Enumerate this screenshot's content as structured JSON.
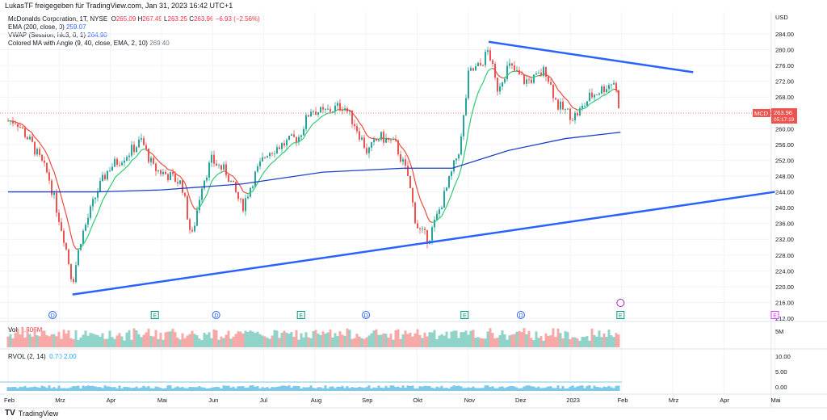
{
  "header": {
    "shared_by": "LukasTF freigegeben für TradingView.com, Jan 31, 2023 16:42 UTC+1"
  },
  "legend": {
    "symbol": "McDonalds Corporation, 1T, NYSE",
    "o_label": "O",
    "o": "265.09",
    "h_label": "H",
    "h": "267.49",
    "l_label": "L",
    "l": "263.25",
    "c_label": "C",
    "c": "263.96",
    "change": "−6.93 (−2.56%)",
    "ema": "EMA (200, close, 0)",
    "ema_val": "259.07",
    "vwap": "VWAP (Session, hlc3, 0, 1)",
    "vwap_val": "264.90",
    "cma": "Colored MA with Angle (9, 40, close, EMA, 2, 10)",
    "cma_val": "269.40"
  },
  "volume": {
    "label": "Vol",
    "value": "1.806M",
    "axis": "5M"
  },
  "rvol": {
    "label": "RVOL (2, 14)",
    "v1": "0.70",
    "v2": "2.00",
    "ticks": [
      "10.00",
      "5.00",
      "0.00"
    ]
  },
  "price_tag": {
    "symbol": "MCD",
    "price": "263.96",
    "countdown": "05:17:19"
  },
  "footer": {
    "brand": "TradingView"
  },
  "colors": {
    "up": "#26a69a",
    "down": "#ef5350",
    "trend": "#2962ff",
    "ema": "#1e40c8"
  },
  "chart_data": {
    "type": "candlestick",
    "currency": "USD",
    "ylim": [
      212,
      284
    ],
    "y_ticks": [
      284,
      280,
      276,
      272,
      268,
      260,
      256,
      252,
      248,
      244,
      240,
      236,
      232,
      228,
      224,
      220,
      216,
      212
    ],
    "x_ticks": [
      "Feb",
      "Mrz",
      "Apr",
      "Mai",
      "Jun",
      "Jul",
      "Aug",
      "Sep",
      "Okt",
      "Nov",
      "Dez",
      "2023",
      "Feb",
      "Mrz",
      "Apr",
      "Mai"
    ],
    "close_path": [
      [
        0,
        262
      ],
      [
        0.16,
        262
      ],
      [
        0.47,
        256
      ],
      [
        0.79,
        248
      ],
      [
        1.1,
        232
      ],
      [
        1.26,
        221
      ],
      [
        1.42,
        232
      ],
      [
        1.74,
        244
      ],
      [
        1.97,
        250
      ],
      [
        2.37,
        254
      ],
      [
        2.61,
        257
      ],
      [
        2.84,
        250
      ],
      [
        3.16,
        248
      ],
      [
        3.4,
        246
      ],
      [
        3.59,
        232
      ],
      [
        3.79,
        246
      ],
      [
        3.98,
        252
      ],
      [
        4.27,
        249
      ],
      [
        4.58,
        240
      ],
      [
        4.82,
        248
      ],
      [
        5.06,
        254
      ],
      [
        5.37,
        256
      ],
      [
        5.69,
        258
      ],
      [
        5.92,
        265
      ],
      [
        6.16,
        264
      ],
      [
        6.56,
        266
      ],
      [
        6.79,
        261
      ],
      [
        7.03,
        254
      ],
      [
        7.27,
        258
      ],
      [
        7.58,
        256
      ],
      [
        7.82,
        248
      ],
      [
        7.98,
        236
      ],
      [
        8.06,
        234
      ],
      [
        8.22,
        232
      ],
      [
        8.37,
        237
      ],
      [
        8.61,
        246
      ],
      [
        8.85,
        256
      ],
      [
        9.01,
        274
      ],
      [
        9.24,
        276
      ],
      [
        9.4,
        280
      ],
      [
        9.56,
        270
      ],
      [
        9.79,
        276
      ],
      [
        10.11,
        272
      ],
      [
        10.35,
        273
      ],
      [
        10.51,
        275
      ],
      [
        10.74,
        266
      ],
      [
        11.06,
        263
      ],
      [
        11.22,
        265
      ],
      [
        11.37,
        268
      ],
      [
        11.61,
        270
      ],
      [
        11.85,
        272
      ],
      [
        11.98,
        264
      ]
    ],
    "ema200": [
      [
        0,
        244
      ],
      [
        1.74,
        244
      ],
      [
        3,
        244.5
      ],
      [
        4.58,
        246
      ],
      [
        6.16,
        249
      ],
      [
        7.74,
        250
      ],
      [
        8.69,
        250
      ],
      [
        9.79,
        254.5
      ],
      [
        10.9,
        257.5
      ],
      [
        11.98,
        259.1
      ]
    ],
    "trend_upper": [
      [
        9.4,
        282
      ],
      [
        13.4,
        274.3
      ]
    ],
    "trend_lower": [
      [
        1.26,
        218
      ],
      [
        15.0,
        244
      ]
    ],
    "events": [
      {
        "t": 0.87,
        "type": "D"
      },
      {
        "t": 2.87,
        "type": "E"
      },
      {
        "t": 4.07,
        "type": "D"
      },
      {
        "t": 5.73,
        "type": "E"
      },
      {
        "t": 7.0,
        "type": "D"
      },
      {
        "t": 8.93,
        "type": "E"
      },
      {
        "t": 10.03,
        "type": "D"
      },
      {
        "t": 11.98,
        "type": "E"
      },
      {
        "t": 15.0,
        "type": "E"
      }
    ]
  }
}
